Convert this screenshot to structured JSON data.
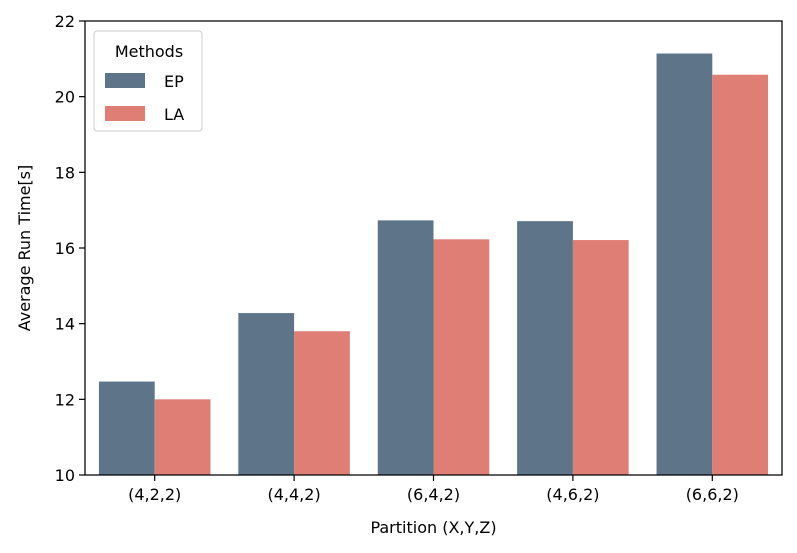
{
  "chart_data": {
    "type": "bar",
    "xlabel": "Partition (X,Y,Z)",
    "ylabel": "Average Run Time[s]",
    "categories": [
      "(4,2,2)",
      "(4,4,2)",
      "(6,4,2)",
      "(4,6,2)",
      "(6,6,2)"
    ],
    "series": [
      {
        "name": "EP",
        "color": "#5d7489",
        "values": [
          12.47,
          14.28,
          16.73,
          16.71,
          21.14
        ]
      },
      {
        "name": "LA",
        "color": "#de7e75",
        "values": [
          12.0,
          13.8,
          16.23,
          16.21,
          20.58
        ]
      }
    ],
    "ylim": [
      10,
      22
    ],
    "yticks": [
      10,
      12,
      14,
      16,
      18,
      20,
      22
    ],
    "legend": {
      "title": "Methods",
      "position": "top-left"
    },
    "grid": false
  }
}
